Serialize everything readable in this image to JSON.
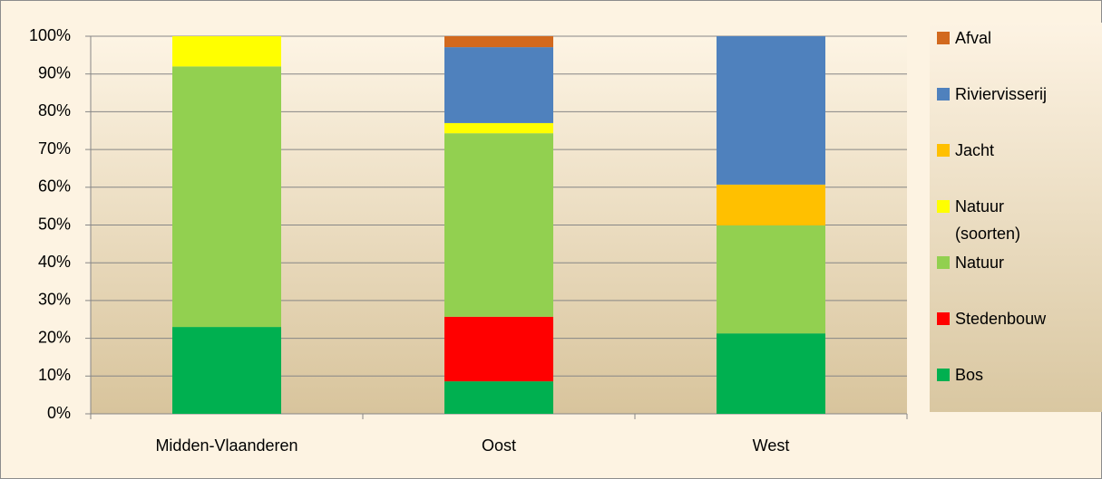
{
  "chart_data": {
    "type": "stacked_bar",
    "categories": [
      "Midden-Vlaanderen",
      "Oost",
      "West"
    ],
    "series": [
      {
        "name": "Bos",
        "color": "#00b050",
        "values": [
          23,
          8.6,
          21.3
        ]
      },
      {
        "name": "Stedenbouw",
        "color": "#ff0000",
        "values": [
          0,
          17.1,
          0
        ]
      },
      {
        "name": "Natuur",
        "color": "#92d050",
        "values": [
          69,
          48.6,
          28.6
        ]
      },
      {
        "name": "Natuur (soorten)",
        "color": "#ffff00",
        "values": [
          8,
          2.7,
          0
        ]
      },
      {
        "name": "Jacht",
        "color": "#ffc000",
        "values": [
          0,
          0,
          10.8
        ]
      },
      {
        "name": "Riviervisserij",
        "color": "#4f81bd",
        "values": [
          0,
          20.1,
          39.3
        ]
      },
      {
        "name": "Afval",
        "color": "#d2691e",
        "values": [
          0,
          2.9,
          0
        ]
      }
    ],
    "ylim": [
      0,
      100
    ],
    "yticks": [
      {
        "value": 0,
        "label": "0%"
      },
      {
        "value": 10,
        "label": "10%"
      },
      {
        "value": 20,
        "label": "20%"
      },
      {
        "value": 30,
        "label": "30%"
      },
      {
        "value": 40,
        "label": "40%"
      },
      {
        "value": 50,
        "label": "50%"
      },
      {
        "value": 60,
        "label": "60%"
      },
      {
        "value": 70,
        "label": "70%"
      },
      {
        "value": 80,
        "label": "80%"
      },
      {
        "value": 90,
        "label": "90%"
      },
      {
        "value": 100,
        "label": "100%"
      }
    ],
    "grid": true,
    "legend": "right"
  }
}
